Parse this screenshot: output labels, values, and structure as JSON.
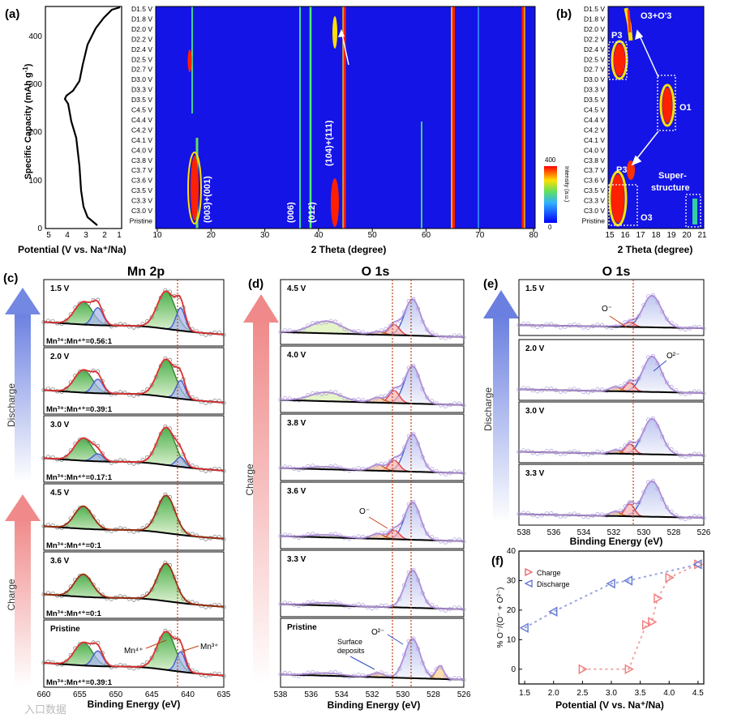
{
  "panels": {
    "a": "(a)",
    "b": "(b)",
    "c": "(c)",
    "d": "(d)",
    "e": "(e)",
    "f": "(f)"
  },
  "titles": {
    "mn2p": "Mn 2p",
    "o1s_d": "O 1s",
    "o1s_e": "O 1s"
  },
  "a_left": {
    "ylabel": "Specific Capacity (mAh g",
    "ylabel_sup": "-1",
    "ylabel_end": ")",
    "yticks": [
      "0",
      "100",
      "200",
      "300",
      "400"
    ],
    "xticks": [
      "5",
      "4",
      "3",
      "2",
      "1"
    ],
    "xlabel": "Potential (V vs. Na⁺/Na)"
  },
  "a_map": {
    "rows": [
      "D1.5 V",
      "D1.8 V",
      "D2.0 V",
      "D2.2 V",
      "D2.4 V",
      "D2.5 V",
      "D2.7 V",
      "D3.0 V",
      "D3.3 V",
      "D3.5 V",
      "C4.5 V",
      "C4.4 V",
      "C4.2 V",
      "C4.1 V",
      "C4.0 V",
      "C3.8 V",
      "C3.7 V",
      "C3.6 V",
      "C3.5 V",
      "C3.3 V",
      "C3.0 V",
      "Pristine"
    ],
    "xticks": [
      "10",
      "20",
      "30",
      "40",
      "50",
      "60",
      "70",
      "80"
    ],
    "xlabel": "2 Theta (degree)",
    "peaks": [
      "(003)+(001)",
      "(006)",
      "(012)",
      "(104)+(111)"
    ],
    "colorbar": {
      "max": "400",
      "min": "0",
      "label": "Intensity (a.u.)"
    }
  },
  "b_map": {
    "rows": [
      "D1.5 V",
      "D1.8 V",
      "D2.0 V",
      "D2.2 V",
      "D2.4 V",
      "D2.5 V",
      "D2.7 V",
      "D3.0 V",
      "D3.3 V",
      "D3.5 V",
      "C4.5 V",
      "C4.4 V",
      "C4.2 V",
      "C4.1 V",
      "C4.0 V",
      "C3.8 V",
      "C3.7 V",
      "C3.6 V",
      "C3.5 V",
      "C3.3 V",
      "C3.0 V",
      "Pristine"
    ],
    "xticks": [
      "15",
      "16",
      "17",
      "18",
      "19",
      "20",
      "21"
    ],
    "xlabel": "2 Theta (degree)",
    "labels": {
      "o3o3": "O3+O'3",
      "p3a": "P3",
      "o1": "O1",
      "p3b": "P3",
      "super1": "Super-",
      "super2": "structure",
      "o3": "O3"
    }
  },
  "c": {
    "xticks": [
      "660",
      "655",
      "650",
      "645",
      "640",
      "635"
    ],
    "xlabel": "Binding Energy (eV)",
    "spectra": [
      {
        "label": "1.5 V",
        "ratio": "Mn³⁺:Mn⁴⁺=0.56:1"
      },
      {
        "label": "2.0 V",
        "ratio": "Mn³⁺:Mn⁴⁺=0.39:1"
      },
      {
        "label": "3.0 V",
        "ratio": "Mn³⁺:Mn⁴⁺=0.17:1"
      },
      {
        "label": "4.5 V",
        "ratio": "Mn³⁺:Mn⁴⁺=0:1"
      },
      {
        "label": "3.6 V",
        "ratio": "Mn³⁺:Mn⁴⁺=0:1"
      },
      {
        "label": "Pristine",
        "ratio": "Mn³⁺:Mn⁴⁺=0.39:1"
      }
    ],
    "annot": {
      "mn4": "Mn⁴⁺",
      "mn3": "Mn³⁺"
    },
    "arrows": {
      "discharge": "Discharge",
      "charge": "Charge"
    }
  },
  "d": {
    "xticks": [
      "538",
      "536",
      "534",
      "532",
      "530",
      "528",
      "526"
    ],
    "xlabel": "Binding Energy (eV)",
    "spectra": [
      "4.5 V",
      "4.0 V",
      "3.8 V",
      "3.6 V",
      "3.3 V",
      "Pristine"
    ],
    "annot": {
      "om": "O⁻",
      "o2": "O²⁻",
      "surf1": "Surface",
      "surf2": "deposits"
    },
    "arrow": "Charge"
  },
  "e": {
    "xticks": [
      "538",
      "536",
      "534",
      "532",
      "530",
      "528",
      "526"
    ],
    "xlabel": "Binding Energy (eV)",
    "spectra": [
      "1.5 V",
      "2.0 V",
      "3.0 V",
      "3.3 V"
    ],
    "annot": {
      "om": "O⁻",
      "o2": "O²⁻"
    },
    "arrow": "Discharge"
  },
  "chart_data": {
    "type": "scatter",
    "title": "",
    "xlabel": "Potential (V vs. Na⁺/Na)",
    "ylabel": "% O⁻/(O⁻ + O²⁻)",
    "xlim": [
      1.4,
      4.6
    ],
    "ylim": [
      -5,
      40
    ],
    "xticks": [
      "1.5",
      "2.0",
      "2.5",
      "3.0",
      "3.5",
      "4.0",
      "4.5"
    ],
    "yticks": [
      "0",
      "10",
      "20",
      "30",
      "40"
    ],
    "legend_position": "top-left",
    "series": [
      {
        "name": "Charge",
        "color": "#f08080",
        "marker": "triangle-right",
        "x": [
          2.5,
          3.3,
          3.6,
          3.7,
          3.8,
          4.0,
          4.5
        ],
        "y": [
          0,
          0,
          15,
          16,
          24,
          31,
          35.5
        ]
      },
      {
        "name": "Discharge",
        "color": "#6a7fd6",
        "marker": "triangle-left",
        "x": [
          1.5,
          2.0,
          3.0,
          3.3,
          4.5
        ],
        "y": [
          14,
          19.5,
          29,
          30,
          35.5
        ]
      }
    ]
  },
  "watermark": "入口数据"
}
